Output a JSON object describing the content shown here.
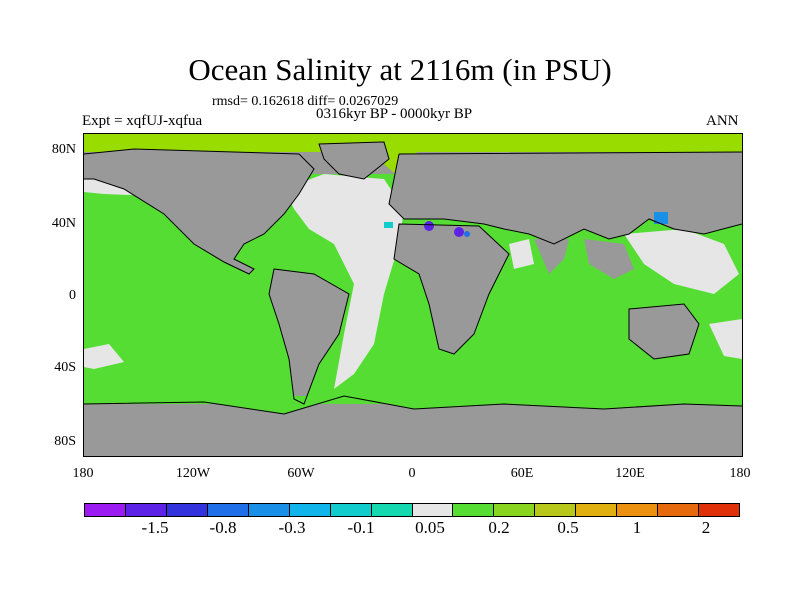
{
  "title": "Ocean Salinity at 2116m (in PSU)",
  "stats_line": "rmsd= 0.162618 diff= 0.0267029",
  "period_line": "0316kyr BP - 0000kyr BP",
  "experiment_label": "Expt = xqfUJ-xqfua",
  "season_label": "ANN",
  "map": {
    "latitude_labels": [
      "80N",
      "40N",
      "0",
      "40S",
      "80S"
    ],
    "longitude_labels": [
      "180",
      "120W",
      "60W",
      "0",
      "60E",
      "120E",
      "180"
    ],
    "land_color": "#999999",
    "neutral_color": "#e6e6e6",
    "positive_color": "#55dd33",
    "arctic_color": "#99dd00"
  },
  "colorbar": {
    "colors": [
      "#9b1bf0",
      "#5c23e6",
      "#3333dd",
      "#1f6fe8",
      "#1a8fe8",
      "#0fb4ea",
      "#10cccc",
      "#14d9b0",
      "#e6e6e6",
      "#55dd33",
      "#88d41e",
      "#b8c81a",
      "#e0b010",
      "#ec9010",
      "#e66a0d",
      "#e0300a"
    ],
    "labels": [
      "-1.5",
      "-0.8",
      "-0.3",
      "-0.1",
      "0.05",
      "0.2",
      "0.5",
      "1",
      "2"
    ]
  }
}
